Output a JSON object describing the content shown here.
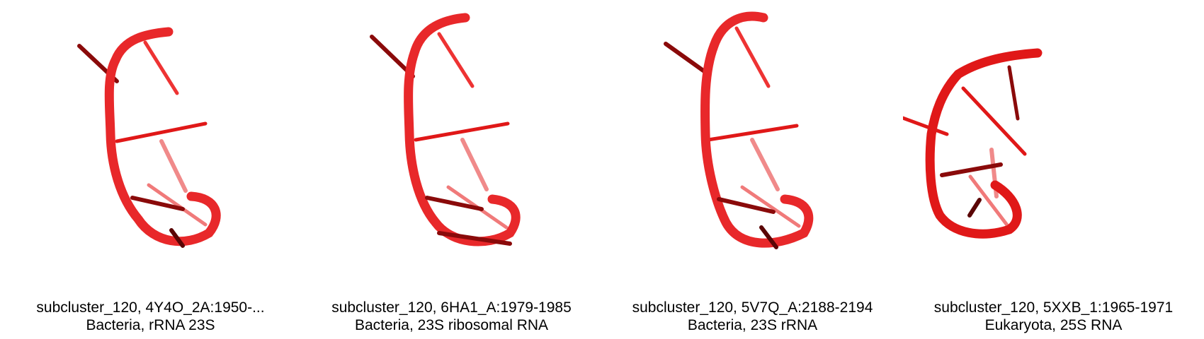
{
  "panels": [
    {
      "title": "subcluster_120, 4Y4O_2A:1950-...",
      "subtitle": "Bacteria, rRNA 23S"
    },
    {
      "title": "subcluster_120, 6HA1_A:1979-1985",
      "subtitle": "Bacteria, 23S ribosomal RNA"
    },
    {
      "title": "subcluster_120, 5V7Q_A:2188-2194",
      "subtitle": "Bacteria, 23S rRNA"
    },
    {
      "title": "subcluster_120, 5XXB_1:1965-1971",
      "subtitle": "Eukaryota, 25S RNA"
    }
  ],
  "colors": {
    "backbone": "#e8282a",
    "backbone_light": "#f07a7a",
    "base_dark": "#8a0a0a",
    "base": "#e01818",
    "base_light": "#f08a8a"
  }
}
